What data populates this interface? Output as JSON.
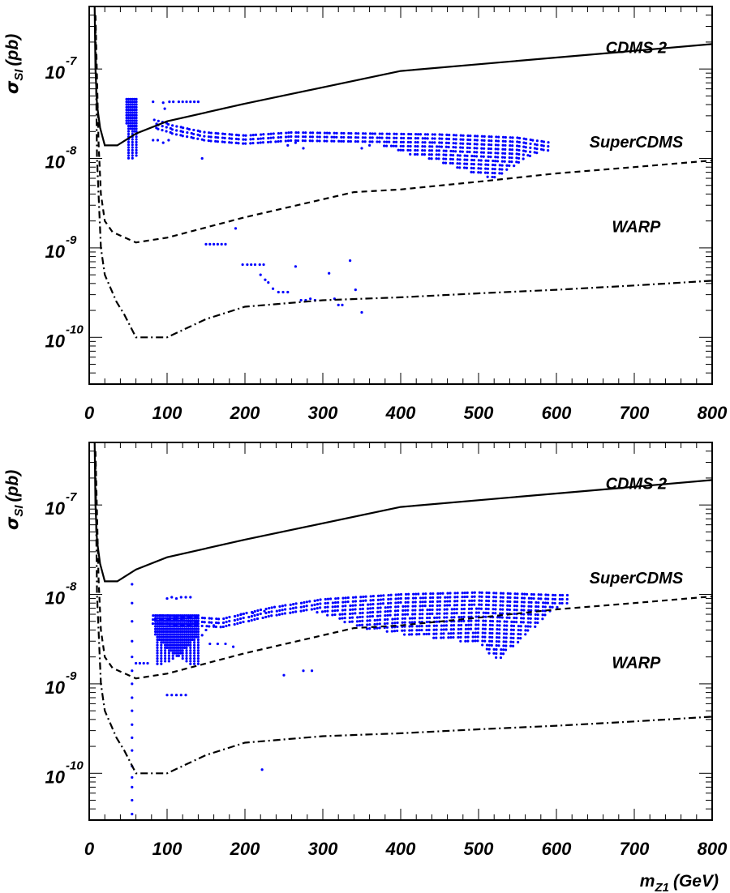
{
  "chart_data": [
    {
      "type": "scatter",
      "panel": "top",
      "title": "",
      "xlabel": "",
      "ylabel": "σSI (pb)",
      "ylabel_parts": {
        "symbol": "σ",
        "sub": "SI",
        "unit": "(pb)"
      },
      "xlim": [
        0,
        800
      ],
      "ylim": [
        3e-11,
        5e-07
      ],
      "y_scale": "log",
      "x_ticks": [
        0,
        100,
        200,
        300,
        400,
        500,
        600,
        700,
        800
      ],
      "x_tick_labels": [
        "0",
        "100",
        "200",
        "300",
        "400",
        "500",
        "600",
        "700",
        "800"
      ],
      "y_ticks": [
        {
          "base": "10",
          "exp": "-7",
          "value": 1e-07
        },
        {
          "base": "10",
          "exp": "-8",
          "value": 1e-08
        },
        {
          "base": "10",
          "exp": "-9",
          "value": 1e-09
        },
        {
          "base": "10",
          "exp": "-10",
          "value": 1e-10
        }
      ],
      "limit_curves": [
        {
          "name": "CDMS 2",
          "style": "solid",
          "label_at": [
            640,
            1.7e-07
          ],
          "points": [
            [
              7,
              5e-07
            ],
            [
              8,
              1e-07
            ],
            [
              10,
              4e-08
            ],
            [
              14,
              2.2e-08
            ],
            [
              20,
              1.4e-08
            ],
            [
              36,
              1.4e-08
            ],
            [
              60,
              1.9e-08
            ],
            [
              100,
              2.6e-08
            ],
            [
              200,
              4.1e-08
            ],
            [
              400,
              9.5e-08
            ],
            [
              800,
              1.9e-07
            ]
          ]
        },
        {
          "name": "SuperCDMS",
          "style": "dashed",
          "label_at": [
            640,
            1.5e-08
          ],
          "points": [
            [
              8,
              4e-07
            ],
            [
              10,
              8e-08
            ],
            [
              12,
              1.5e-08
            ],
            [
              15,
              4e-09
            ],
            [
              20,
              2e-09
            ],
            [
              30,
              1.5e-09
            ],
            [
              60,
              1.15e-09
            ],
            [
              100,
              1.3e-09
            ],
            [
              200,
              2.2e-09
            ],
            [
              340,
              4.2e-09
            ],
            [
              400,
              4.5e-09
            ],
            [
              500,
              5.5e-09
            ],
            [
              600,
              6.8e-09
            ],
            [
              700,
              8e-09
            ],
            [
              800,
              9.5e-09
            ]
          ]
        },
        {
          "name": "WARP",
          "style": "dashdot",
          "label_at": [
            640,
            1.7e-09
          ],
          "points": [
            [
              8,
              3e-07
            ],
            [
              10,
              1e-08
            ],
            [
              15,
              1e-09
            ],
            [
              20,
              5e-10
            ],
            [
              35,
              2.5e-10
            ],
            [
              45,
              1.8e-10
            ],
            [
              60,
              1e-10
            ],
            [
              100,
              1e-10
            ],
            [
              150,
              1.6e-10
            ],
            [
              200,
              2.2e-10
            ],
            [
              300,
              2.6e-10
            ],
            [
              400,
              2.8e-10
            ],
            [
              500,
              3.1e-10
            ],
            [
              600,
              3.4e-10
            ],
            [
              700,
              3.8e-10
            ],
            [
              800,
              4.3e-10
            ]
          ]
        }
      ],
      "scan": {
        "color": "#0000ff",
        "band": {
          "x_start": 85,
          "x_end": 592,
          "nodes": [
            [
              85,
              2.7e-08
            ],
            [
              110,
              2.3e-08
            ],
            [
              150,
              1.95e-08
            ],
            [
              200,
              1.8e-08
            ],
            [
              260,
              1.95e-08
            ],
            [
              350,
              1.9e-08
            ],
            [
              450,
              1.85e-08
            ],
            [
              550,
              1.7e-08
            ],
            [
              592,
              1.5e-08
            ]
          ],
          "low_nodes": [
            [
              350,
              1.6e-08
            ],
            [
              400,
              1.2e-08
            ],
            [
              450,
              9e-09
            ],
            [
              500,
              6.5e-09
            ],
            [
              520,
              6e-09
            ],
            [
              592,
              1.4e-08
            ]
          ]
        },
        "spike": {
          "x_range": [
            48,
            62
          ],
          "y_low": 9.5e-09,
          "y_high": 4.6e-08
        },
        "points": [
          [
            95,
            4.2e-08
          ],
          [
            103,
            4.3e-08
          ],
          [
            108,
            4.3e-08
          ],
          [
            115,
            4.3e-08
          ],
          [
            120,
            4.3e-08
          ],
          [
            125,
            4.3e-08
          ],
          [
            130,
            4.3e-08
          ],
          [
            135,
            4.3e-08
          ],
          [
            140,
            4.3e-08
          ],
          [
            97,
            3.6e-08
          ],
          [
            82,
            4.3e-08
          ],
          [
            82,
            1.6e-08
          ],
          [
            88,
            1.6e-08
          ],
          [
            95,
            1.5e-08
          ],
          [
            102,
            1.6e-08
          ],
          [
            145,
            1e-08
          ],
          [
            150,
            1.1e-09
          ],
          [
            155,
            1.1e-09
          ],
          [
            160,
            1.1e-09
          ],
          [
            165,
            1.1e-09
          ],
          [
            170,
            1.1e-09
          ],
          [
            175,
            1.1e-09
          ],
          [
            188,
            1.65e-09
          ],
          [
            197,
            6.5e-10
          ],
          [
            203,
            6.5e-10
          ],
          [
            208,
            6.5e-10
          ],
          [
            213,
            6.5e-10
          ],
          [
            219,
            6.5e-10
          ],
          [
            224,
            6.5e-10
          ],
          [
            220,
            5e-10
          ],
          [
            226,
            4.4e-10
          ],
          [
            230,
            4.1e-10
          ],
          [
            236,
            3.5e-10
          ],
          [
            243,
            3.2e-10
          ],
          [
            249,
            3.2e-10
          ],
          [
            255,
            3.2e-10
          ],
          [
            265,
            6.2e-10
          ],
          [
            272,
            2.6e-10
          ],
          [
            278,
            2.6e-10
          ],
          [
            284,
            2.7e-10
          ],
          [
            290,
            2.6e-10
          ],
          [
            308,
            5.2e-10
          ],
          [
            315,
            2.7e-10
          ],
          [
            320,
            2.3e-10
          ],
          [
            325,
            2.3e-10
          ],
          [
            335,
            7.2e-10
          ],
          [
            342,
            3.4e-10
          ],
          [
            350,
            1.9e-10
          ],
          [
            255,
            1.4e-08
          ],
          [
            265,
            1.5e-08
          ],
          [
            275,
            1.3e-08
          ],
          [
            350,
            1.3e-08
          ],
          [
            360,
            1.4e-08
          ]
        ]
      }
    },
    {
      "type": "scatter",
      "panel": "bottom",
      "title": "",
      "xlabel": "mZ1 (GeV)",
      "xlabel_parts": {
        "symbol": "m",
        "sub": "Z1",
        "unit": "(GeV)"
      },
      "ylabel": "σSI (pb)",
      "ylabel_parts": {
        "symbol": "σ",
        "sub": "SI",
        "unit": "(pb)"
      },
      "xlim": [
        0,
        800
      ],
      "ylim": [
        3e-11,
        5e-07
      ],
      "y_scale": "log",
      "x_ticks": [
        0,
        100,
        200,
        300,
        400,
        500,
        600,
        700,
        800
      ],
      "x_tick_labels": [
        "0",
        "100",
        "200",
        "300",
        "400",
        "500",
        "600",
        "700",
        "800"
      ],
      "y_ticks": [
        {
          "base": "10",
          "exp": "-7",
          "value": 1e-07
        },
        {
          "base": "10",
          "exp": "-8",
          "value": 1e-08
        },
        {
          "base": "10",
          "exp": "-9",
          "value": 1e-09
        },
        {
          "base": "10",
          "exp": "-10",
          "value": 1e-10
        }
      ],
      "limit_curves": [
        {
          "name": "CDMS 2",
          "style": "solid",
          "label_at": [
            640,
            1.7e-07
          ],
          "points": [
            [
              7,
              5e-07
            ],
            [
              8,
              1e-07
            ],
            [
              10,
              4e-08
            ],
            [
              14,
              2.2e-08
            ],
            [
              20,
              1.4e-08
            ],
            [
              36,
              1.4e-08
            ],
            [
              60,
              1.9e-08
            ],
            [
              100,
              2.6e-08
            ],
            [
              200,
              4.1e-08
            ],
            [
              400,
              9.5e-08
            ],
            [
              800,
              1.9e-07
            ]
          ]
        },
        {
          "name": "SuperCDMS",
          "style": "dashed",
          "label_at": [
            640,
            1.5e-08
          ],
          "points": [
            [
              8,
              4e-07
            ],
            [
              10,
              8e-08
            ],
            [
              12,
              1.5e-08
            ],
            [
              15,
              4e-09
            ],
            [
              20,
              2e-09
            ],
            [
              30,
              1.5e-09
            ],
            [
              60,
              1.15e-09
            ],
            [
              100,
              1.3e-09
            ],
            [
              200,
              2.2e-09
            ],
            [
              340,
              4.2e-09
            ],
            [
              400,
              4.5e-09
            ],
            [
              500,
              5.5e-09
            ],
            [
              600,
              6.8e-09
            ],
            [
              700,
              8e-09
            ],
            [
              800,
              9.5e-09
            ]
          ]
        },
        {
          "name": "WARP",
          "style": "dashdot",
          "label_at": [
            640,
            1.7e-09
          ],
          "points": [
            [
              8,
              3e-07
            ],
            [
              10,
              1e-08
            ],
            [
              15,
              1e-09
            ],
            [
              20,
              5e-10
            ],
            [
              35,
              2.5e-10
            ],
            [
              45,
              1.8e-10
            ],
            [
              60,
              1e-10
            ],
            [
              100,
              1e-10
            ],
            [
              150,
              1.6e-10
            ],
            [
              200,
              2.2e-10
            ],
            [
              300,
              2.6e-10
            ],
            [
              400,
              2.8e-10
            ],
            [
              500,
              3.1e-10
            ],
            [
              600,
              3.4e-10
            ],
            [
              700,
              3.8e-10
            ],
            [
              800,
              4.3e-10
            ]
          ]
        }
      ],
      "scan": {
        "color": "#0000ff",
        "band": {
          "x_start": 82,
          "x_end": 615,
          "nodes": [
            [
              82,
              5.8e-09
            ],
            [
              100,
              5.8e-09
            ],
            [
              140,
              5.5e-09
            ],
            [
              170,
              5.3e-09
            ],
            [
              230,
              7e-09
            ],
            [
              300,
              8.8e-09
            ],
            [
              400,
              1e-08
            ],
            [
              500,
              1.05e-08
            ],
            [
              600,
              9.8e-09
            ],
            [
              615,
              9.8e-09
            ]
          ],
          "low_nodes": [
            [
              260,
              7.5e-09
            ],
            [
              300,
              6e-09
            ],
            [
              350,
              4.2e-09
            ],
            [
              400,
              3.6e-09
            ],
            [
              450,
              3.2e-09
            ],
            [
              500,
              2.8e-09
            ],
            [
              525,
              1.8e-09
            ],
            [
              615,
              9.5e-09
            ]
          ]
        },
        "spike": {
          "x_range": [
            85,
            140
          ],
          "y_low": 1.6e-09,
          "y_high": 5.8e-09
        },
        "points": [
          [
            55,
            1.3e-08
          ],
          [
            55,
            8e-09
          ],
          [
            55,
            5e-09
          ],
          [
            55,
            3e-09
          ],
          [
            55,
            2e-09
          ],
          [
            55,
            1.4e-09
          ],
          [
            55,
            1e-09
          ],
          [
            55,
            7e-10
          ],
          [
            55,
            5e-10
          ],
          [
            55,
            3.5e-10
          ],
          [
            55,
            2.5e-10
          ],
          [
            55,
            1.8e-10
          ],
          [
            55,
            1.2e-10
          ],
          [
            55,
            9e-11
          ],
          [
            55,
            7e-11
          ],
          [
            55,
            5e-11
          ],
          [
            55,
            3.5e-11
          ],
          [
            60,
            1.7e-09
          ],
          [
            65,
            1.7e-09
          ],
          [
            70,
            1.7e-09
          ],
          [
            75,
            1.7e-09
          ],
          [
            100,
            9e-09
          ],
          [
            106,
            9.3e-09
          ],
          [
            112,
            9e-09
          ],
          [
            118,
            9.3e-09
          ],
          [
            124,
            9.3e-09
          ],
          [
            130,
            9.3e-09
          ],
          [
            100,
            7.5e-10
          ],
          [
            106,
            7.5e-10
          ],
          [
            112,
            7.5e-10
          ],
          [
            118,
            7.5e-10
          ],
          [
            124,
            7.5e-10
          ],
          [
            222,
            1.1e-10
          ],
          [
            250,
            1.25e-09
          ],
          [
            275,
            1.4e-09
          ],
          [
            286,
            1.4e-09
          ],
          [
            225,
            6.5e-09
          ],
          [
            210,
            6.2e-09
          ],
          [
            195,
            6e-09
          ],
          [
            160,
            4.5e-09
          ],
          [
            150,
            4e-09
          ],
          [
            145,
            3.5e-09
          ],
          [
            155,
            2.8e-09
          ],
          [
            165,
            2.8e-09
          ],
          [
            175,
            2.8e-09
          ],
          [
            185,
            2.6e-09
          ]
        ]
      }
    }
  ]
}
